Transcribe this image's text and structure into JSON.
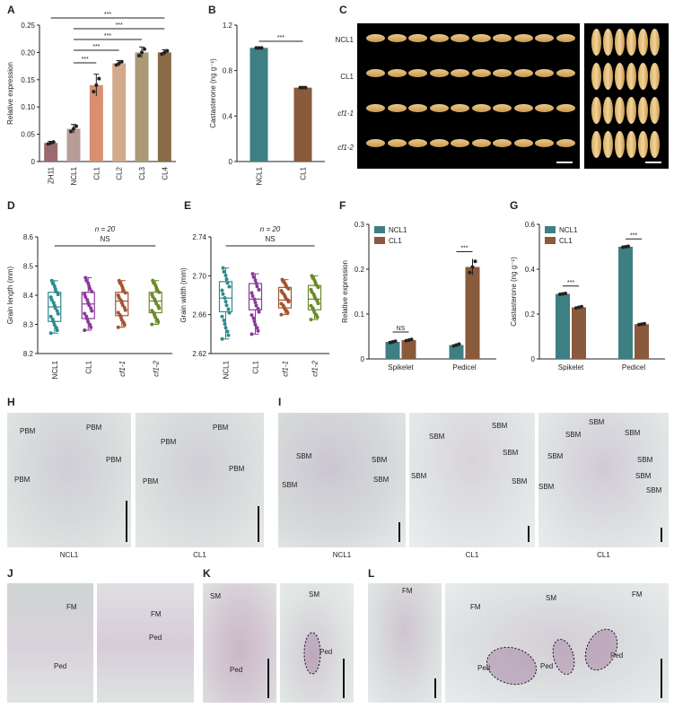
{
  "colors": {
    "teal": "#3d7f83",
    "brown": "#8a5a3c",
    "zh11": "#9b6a6c",
    "ncl1_bar": "#b89c98",
    "cl1_bar": "#d98f70",
    "cl2_bar": "#d2a98b",
    "cl3_bar": "#ab9a75",
    "cl4_bar": "#8a6b47",
    "box_ncl1": "#2f8b8f",
    "box_cl1": "#8a3a9a",
    "box_cf1_1": "#a3552f",
    "box_cf1_2": "#6b8a2a",
    "tissue_bg": "#d9dedd",
    "tissue_stain": "#b89ab0"
  },
  "panels": {
    "A": {
      "letter": "A"
    },
    "B": {
      "letter": "B"
    },
    "C": {
      "letter": "C",
      "rows": [
        "NCL1",
        "CL1",
        "cf1-1",
        "cf1-2"
      ]
    },
    "D": {
      "letter": "D",
      "n_note": "n = 20",
      "sig": "NS"
    },
    "E": {
      "letter": "E",
      "n_note": "n = 20",
      "sig": "NS"
    },
    "F": {
      "letter": "F"
    },
    "G": {
      "letter": "G"
    },
    "H": {
      "letter": "H",
      "labels": [
        "PBM",
        "PBM",
        "PBM",
        "PBM",
        "PBM",
        "PBM",
        "PBM",
        "PBM"
      ],
      "captions": [
        "NCL1",
        "CL1"
      ]
    },
    "I": {
      "letter": "I",
      "labels_1": [
        "SBM",
        "SBM",
        "SBM",
        "SBM"
      ],
      "labels_2": [
        "SBM",
        "SBM",
        "SBM",
        "SBM",
        "SBM"
      ],
      "labels_3": [
        "SBM",
        "SBM",
        "SBM",
        "SBM",
        "SBM",
        "SBM",
        "SBM",
        "SBM"
      ],
      "captions": [
        "NCL1",
        "CL1",
        "CL1"
      ]
    },
    "J": {
      "letter": "J",
      "labels_1": [
        "FM",
        "Ped"
      ],
      "labels_2": [
        "FM",
        "Ped"
      ]
    },
    "K": {
      "letter": "K",
      "labels_1": [
        "SM",
        "Ped"
      ],
      "labels_2": [
        "SM",
        "Ped"
      ]
    },
    "L": {
      "letter": "L",
      "labels_1": [
        "FM"
      ],
      "labels_2": [
        "FM",
        "SM",
        "FM",
        "Ped",
        "Ped",
        "Ped"
      ]
    }
  },
  "chart_data": [
    {
      "panel": "A",
      "type": "bar",
      "ylabel": "Relative expression",
      "categories": [
        "ZH11",
        "NCL1",
        "CL1",
        "CL2",
        "CL3",
        "CL4"
      ],
      "values": [
        0.034,
        0.06,
        0.14,
        0.18,
        0.2,
        0.2
      ],
      "errors": [
        0.003,
        0.008,
        0.02,
        0.005,
        0.01,
        0.005
      ],
      "ylim": [
        0,
        0.25
      ],
      "yticks": [
        "0",
        "0.05",
        "0.10",
        "0.15",
        "0.20",
        "0.25"
      ],
      "significance": [
        "***",
        "***",
        "***",
        "***",
        "***"
      ]
    },
    {
      "panel": "B",
      "type": "bar",
      "ylabel": "Castasterone (ng g⁻¹)",
      "categories": [
        "NCL1",
        "CL1"
      ],
      "values": [
        1.0,
        0.65
      ],
      "errors": [
        0.01,
        0.02
      ],
      "ylim": [
        0,
        1.2
      ],
      "yticks": [
        "0",
        "0.4",
        "0.8",
        "1.2"
      ],
      "significance": [
        "***"
      ]
    },
    {
      "panel": "D",
      "type": "box",
      "ylabel": "Grain length (mm)",
      "categories": [
        "NCL1",
        "CL1",
        "cf1-1",
        "cf1-2"
      ],
      "boxes": [
        {
          "min": 8.27,
          "q1": 8.31,
          "median": 8.36,
          "q3": 8.41,
          "max": 8.45
        },
        {
          "min": 8.28,
          "q1": 8.32,
          "median": 8.37,
          "q3": 8.41,
          "max": 8.46
        },
        {
          "min": 8.29,
          "q1": 8.33,
          "median": 8.38,
          "q3": 8.41,
          "max": 8.45
        },
        {
          "min": 8.3,
          "q1": 8.34,
          "median": 8.38,
          "q3": 8.41,
          "max": 8.45
        }
      ],
      "ylim": [
        8.2,
        8.6
      ],
      "yticks": [
        "8.2",
        "8.3",
        "8.4",
        "8.5",
        "8.6"
      ]
    },
    {
      "panel": "E",
      "type": "box",
      "ylabel": "Grain width (mm)",
      "categories": [
        "NCL1",
        "CL1",
        "cf1-1",
        "cf1-2"
      ],
      "boxes": [
        {
          "min": 2.635,
          "q1": 2.663,
          "median": 2.677,
          "q3": 2.694,
          "max": 2.708
        },
        {
          "min": 2.64,
          "q1": 2.665,
          "median": 2.676,
          "q3": 2.692,
          "max": 2.702
        },
        {
          "min": 2.66,
          "q1": 2.667,
          "median": 2.675,
          "q3": 2.688,
          "max": 2.696
        },
        {
          "min": 2.655,
          "q1": 2.665,
          "median": 2.676,
          "q3": 2.69,
          "max": 2.7
        }
      ],
      "ylim": [
        2.62,
        2.74
      ],
      "yticks": [
        "2.62",
        "2.66",
        "2.70",
        "2.74"
      ]
    },
    {
      "panel": "F",
      "type": "bar",
      "ylabel": "Relative expression",
      "categories": [
        "Spikelet",
        "Pedicel"
      ],
      "series": [
        {
          "name": "NCL1",
          "values": [
            0.038,
            0.031
          ],
          "errors": [
            0.002,
            0.003
          ]
        },
        {
          "name": "CL1",
          "values": [
            0.042,
            0.205
          ],
          "errors": [
            0.002,
            0.018
          ]
        }
      ],
      "ylim": [
        0,
        0.3
      ],
      "yticks": [
        "0",
        "0.1",
        "0.2",
        "0.3"
      ],
      "significance": [
        "NS",
        "***"
      ]
    },
    {
      "panel": "G",
      "type": "bar",
      "ylabel": "Castasterone (ng g⁻¹)",
      "categories": [
        "Spikelet",
        "Pedicel"
      ],
      "series": [
        {
          "name": "NCL1",
          "values": [
            0.29,
            0.5
          ],
          "errors": [
            0.003,
            0.003
          ]
        },
        {
          "name": "CL1",
          "values": [
            0.23,
            0.155
          ],
          "errors": [
            0.004,
            0.003
          ]
        }
      ],
      "ylim": [
        0,
        0.6
      ],
      "yticks": [
        "0",
        "0.2",
        "0.4",
        "0.6"
      ],
      "significance": [
        "***",
        "***"
      ]
    }
  ]
}
